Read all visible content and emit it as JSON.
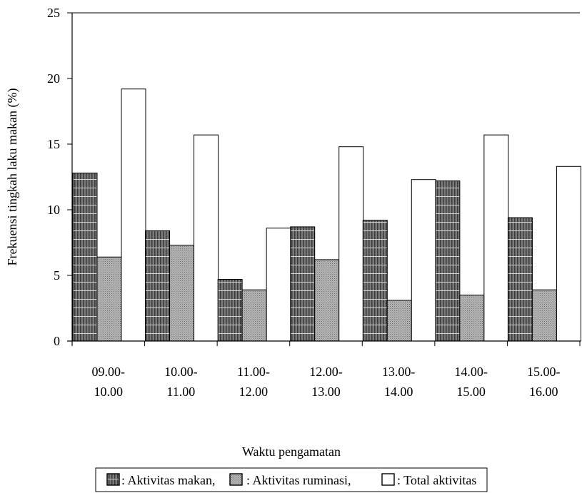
{
  "chart_data": {
    "type": "bar",
    "xlabel": "Waktu pengamatan",
    "ylabel": "Frekuensi tingkah laku makan (%)",
    "ylim": [
      0,
      25
    ],
    "yticks": [
      0,
      5,
      10,
      15,
      20,
      25
    ],
    "categories": [
      [
        "09.00-",
        "10.00"
      ],
      [
        "10.00-",
        "11.00"
      ],
      [
        "11.00-",
        "12.00"
      ],
      [
        "12.00-",
        "13.00"
      ],
      [
        "13.00-",
        "14.00"
      ],
      [
        "14.00-",
        "15.00"
      ],
      [
        "15.00-",
        "16.00"
      ]
    ],
    "series": [
      {
        "name": ": Aktivitas makan,",
        "values": [
          12.8,
          8.4,
          4.7,
          8.7,
          9.2,
          12.2,
          9.4
        ]
      },
      {
        "name": ": Aktivitas ruminasi,",
        "values": [
          6.4,
          7.3,
          3.9,
          6.2,
          3.1,
          3.5,
          3.9
        ]
      },
      {
        "name": ": Total aktivitas",
        "values": [
          19.2,
          15.7,
          8.6,
          14.8,
          12.3,
          15.7,
          13.3
        ]
      }
    ],
    "grid": false,
    "legend_position": "bottom"
  }
}
